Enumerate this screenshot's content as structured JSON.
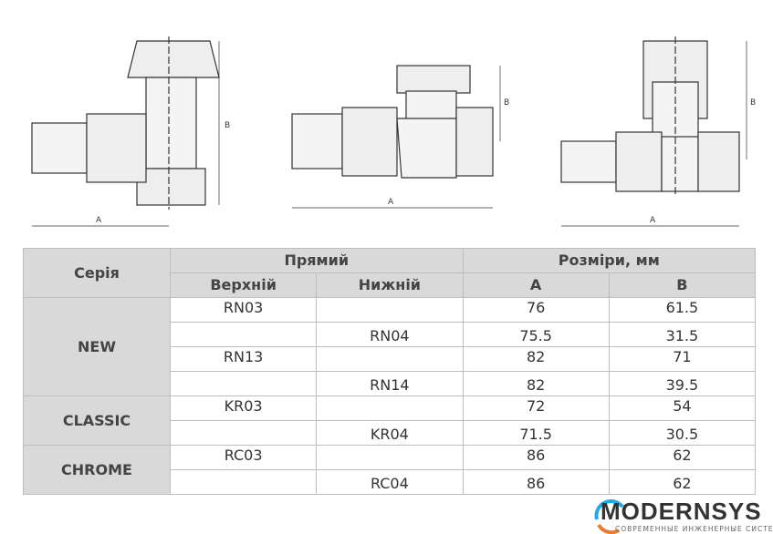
{
  "drawings": {
    "dimension_a": "A",
    "dimension_b": "B"
  },
  "table": {
    "headers": {
      "series": "Серія",
      "straight": "Прямий",
      "upper": "Верхній",
      "lower": "Нижній",
      "dimensions": "Розміри, мм",
      "a": "A",
      "b": "B"
    },
    "groups": [
      {
        "series": "NEW",
        "rows": [
          {
            "upper": "RN03",
            "lower": "",
            "a": "76",
            "b": "61.5"
          },
          {
            "upper": "",
            "lower": "RN04",
            "a": "75.5",
            "b": "31.5"
          },
          {
            "upper": "RN13",
            "lower": "",
            "a": "82",
            "b": "71"
          },
          {
            "upper": "",
            "lower": "RN14",
            "a": "82",
            "b": "39.5"
          }
        ]
      },
      {
        "series": "CLASSIC",
        "rows": [
          {
            "upper": "KR03",
            "lower": "",
            "a": "72",
            "b": "54"
          },
          {
            "upper": "",
            "lower": "KR04",
            "a": "71.5",
            "b": "30.5"
          }
        ]
      },
      {
        "series": "CHROME",
        "rows": [
          {
            "upper": "RC03",
            "lower": "",
            "a": "86",
            "b": "62"
          },
          {
            "upper": "",
            "lower": "RC04",
            "a": "86",
            "b": "62"
          }
        ]
      }
    ]
  },
  "logo": {
    "name": "MODERNSYS",
    "tagline": "СОВРЕМЕННЫЕ ИНЖЕНЕРНЫЕ СИСТЕМЫ",
    "colors": {
      "arc_blue": "#29a8e0",
      "arc_orange": "#f07a2a",
      "text": "#333333"
    }
  }
}
